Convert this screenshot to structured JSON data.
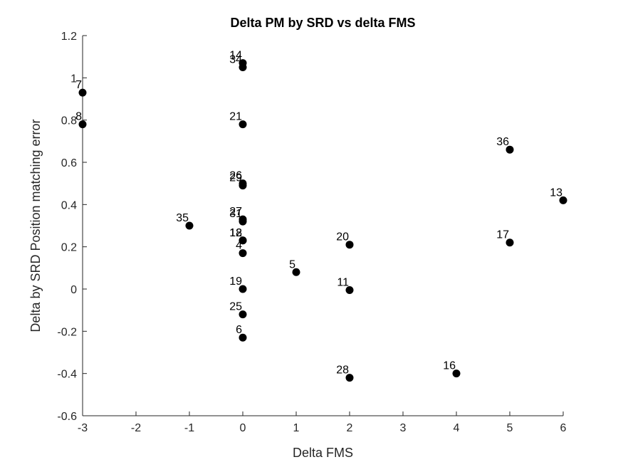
{
  "chart_data": {
    "type": "scatter",
    "title": "Delta PM by SRD vs delta FMS",
    "xlabel": "Delta FMS",
    "ylabel": "Delta by SRD Position matching error",
    "xlim": [
      -3,
      6
    ],
    "ylim": [
      -0.6,
      1.2
    ],
    "xticks": [
      -3,
      -2,
      -1,
      0,
      1,
      2,
      3,
      4,
      5,
      6
    ],
    "yticks": [
      -0.6,
      -0.4,
      -0.2,
      0,
      0.2,
      0.4,
      0.6,
      0.8,
      1,
      1.2
    ],
    "xtick_labels": [
      "-3",
      "-2",
      "-1",
      "0",
      "1",
      "2",
      "3",
      "4",
      "5",
      "6"
    ],
    "ytick_labels": [
      "-0.6",
      "-0.4",
      "-0.2",
      "0",
      "0.2",
      "0.4",
      "0.6",
      "0.8",
      "1",
      "1.2"
    ],
    "grid": false,
    "marker_color": "#000000",
    "points": [
      {
        "label": "7",
        "x": -3,
        "y": 0.93
      },
      {
        "label": "8",
        "x": -3,
        "y": 0.78
      },
      {
        "label": "35",
        "x": -1,
        "y": 0.3
      },
      {
        "label": "14",
        "x": 0,
        "y": 1.07
      },
      {
        "label": "34",
        "x": 0,
        "y": 1.05
      },
      {
        "label": "21",
        "x": 0,
        "y": 0.78
      },
      {
        "label": "26",
        "x": 0,
        "y": 0.5
      },
      {
        "label": "29",
        "x": 0,
        "y": 0.49
      },
      {
        "label": "27",
        "x": 0,
        "y": 0.33
      },
      {
        "label": "31",
        "x": 0,
        "y": 0.32
      },
      {
        "label": "12",
        "x": 0,
        "y": 0.23
      },
      {
        "label": "18",
        "x": 0,
        "y": 0.23
      },
      {
        "label": "4",
        "x": 0,
        "y": 0.17
      },
      {
        "label": "19",
        "x": 0,
        "y": 0.0
      },
      {
        "label": "25",
        "x": 0,
        "y": -0.12
      },
      {
        "label": "6",
        "x": 0,
        "y": -0.23
      },
      {
        "label": "5",
        "x": 1,
        "y": 0.08
      },
      {
        "label": "20",
        "x": 2,
        "y": 0.21
      },
      {
        "label": "11",
        "x": 2,
        "y": -0.005
      },
      {
        "label": "28",
        "x": 2,
        "y": -0.42
      },
      {
        "label": "16",
        "x": 4,
        "y": -0.4
      },
      {
        "label": "36",
        "x": 5,
        "y": 0.66
      },
      {
        "label": "17",
        "x": 5,
        "y": 0.22
      },
      {
        "label": "13",
        "x": 6,
        "y": 0.42
      }
    ]
  }
}
